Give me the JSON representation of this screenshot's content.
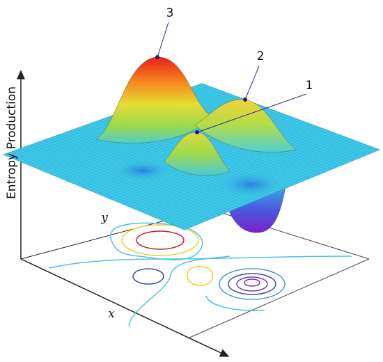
{
  "axes": {
    "z_label": "Entropy Production",
    "x_label": "x",
    "y_label": "y"
  },
  "peaks": [
    {
      "label": "1"
    },
    {
      "label": "2"
    },
    {
      "label": "3"
    }
  ]
}
